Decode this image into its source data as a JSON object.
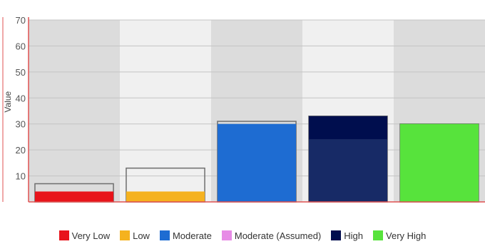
{
  "chart_data": {
    "type": "bar",
    "title": "",
    "xlabel": "",
    "ylabel": "Value",
    "ylim": [
      0,
      70
    ],
    "yticks": [
      10,
      20,
      30,
      40,
      50,
      60,
      70
    ],
    "grid": true,
    "legend_position": "bottom",
    "categories": [
      "Very Low",
      "Low",
      "Moderate",
      "High",
      "Very High"
    ],
    "bars": [
      {
        "category": "Very Low",
        "value": 4,
        "outline": 7,
        "color": "#e8141b",
        "cap_color": ""
      },
      {
        "category": "Low",
        "value": 4,
        "outline": 13,
        "color": "#f5b21f",
        "cap_color": ""
      },
      {
        "category": "Moderate",
        "value": 30,
        "outline": 31,
        "color": "#1e6cd2",
        "cap_color": ""
      },
      {
        "category": "High",
        "value": 24,
        "outline": 33,
        "color": "#172a66",
        "cap_color": "#000e4e"
      },
      {
        "category": "Very High",
        "value": 30,
        "outline": 30,
        "color": "#57e33c",
        "cap_color": ""
      }
    ],
    "band_colors": [
      "#dcdcdc",
      "#f0f0f0"
    ],
    "legend": [
      {
        "label": "Very Low",
        "color": "#e8141b"
      },
      {
        "label": "Low",
        "color": "#f5b21f"
      },
      {
        "label": "Moderate",
        "color": "#1e6cd2"
      },
      {
        "label": "Moderate (Assumed)",
        "color": "#e78be6"
      },
      {
        "label": "High",
        "color": "#000e4e"
      },
      {
        "label": "Very High",
        "color": "#57e33c"
      }
    ],
    "axis_color": "#e05050"
  }
}
